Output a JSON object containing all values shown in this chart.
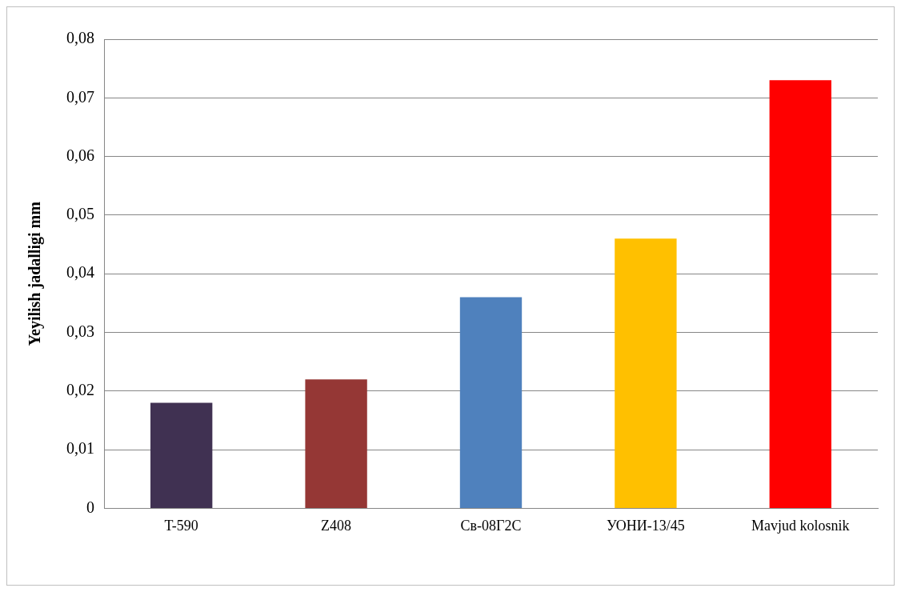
{
  "chart_data": {
    "type": "bar",
    "ylabel": "Yeyilish jadalligi mm",
    "categories": [
      "T-590",
      "Z408",
      "Св-08Г2С",
      "УОНИ-13/45",
      "Mavjud kolosnik"
    ],
    "values": [
      0.018,
      0.022,
      0.036,
      0.046,
      0.073
    ],
    "colors": [
      "#403152",
      "#953735",
      "#4f81bd",
      "#ffc000",
      "#ff0000"
    ],
    "ylim": [
      0,
      0.08
    ],
    "yticks": [
      {
        "value": 0,
        "label": "0"
      },
      {
        "value": 0.01,
        "label": "0,01"
      },
      {
        "value": 0.02,
        "label": "0,02"
      },
      {
        "value": 0.03,
        "label": "0,03"
      },
      {
        "value": 0.04,
        "label": "0,04"
      },
      {
        "value": 0.05,
        "label": "0,05"
      },
      {
        "value": 0.06,
        "label": "0,06"
      },
      {
        "value": 0.07,
        "label": "0,07"
      },
      {
        "value": 0.08,
        "label": "0,08"
      }
    ],
    "grid": "y",
    "legend": false
  }
}
